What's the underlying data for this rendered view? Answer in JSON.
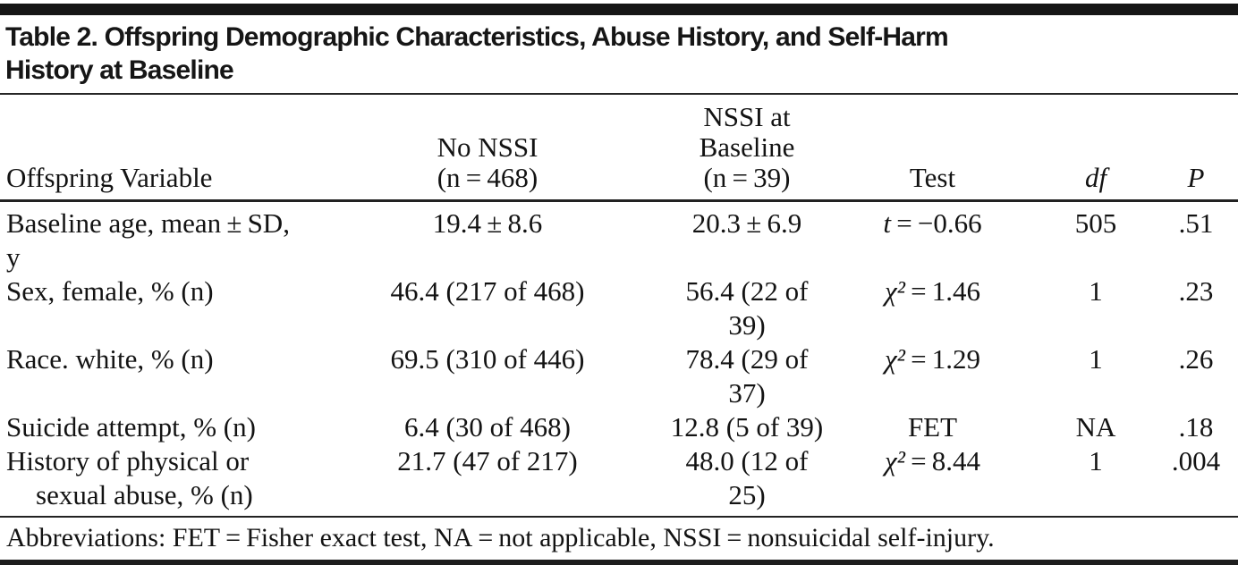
{
  "colors": {
    "rule": "#222222",
    "bar": "#161616",
    "text": "#131313",
    "background": "#ffffff"
  },
  "title": {
    "line1": "Table 2. Offspring Demographic Characteristics, Abuse History, and Self-Harm",
    "line2": "History at Baseline"
  },
  "table": {
    "header": {
      "variable": "Offspring Variable",
      "no_nssi": {
        "line1": "No NSSI",
        "line2": "(n = 468)"
      },
      "nssi_baseline": {
        "line1": "NSSI at",
        "line2": "Baseline",
        "line3": "(n = 39)"
      },
      "test": "Test",
      "df": "df",
      "p": "P"
    },
    "rows": [
      {
        "variable": "Baseline age, mean ± SD, y",
        "no_nssi": "19.4 ± 8.6",
        "nssi_baseline": "20.3 ± 6.9",
        "test_symbol": "t",
        "test_rest": " = −0.66",
        "df": "505",
        "p": ".51"
      },
      {
        "variable": "Sex, female, % (n)",
        "no_nssi": "46.4 (217 of 468)",
        "nssi_baseline": "56.4 (22 of 39)",
        "test_symbol": "χ²",
        "test_rest": " = 1.46",
        "df": "1",
        "p": ".23"
      },
      {
        "variable": "Race. white, % (n)",
        "no_nssi": "69.5 (310 of 446)",
        "nssi_baseline": "78.4 (29 of 37)",
        "test_symbol": "χ²",
        "test_rest": " = 1.29",
        "df": "1",
        "p": ".26"
      },
      {
        "variable": "Suicide attempt, % (n)",
        "no_nssi": "6.4 (30 of 468)",
        "nssi_baseline": "12.8 (5 of 39)",
        "test_symbol": "",
        "test_rest": "FET",
        "df": "NA",
        "p": ".18"
      },
      {
        "variable_line1": "History of physical or",
        "variable_line2": "sexual abuse, % (n)",
        "no_nssi": "21.7 (47 of 217)",
        "nssi_baseline": "48.0 (12 of 25)",
        "test_symbol": "χ²",
        "test_rest": " = 8.44",
        "df": "1",
        "p": ".004"
      }
    ],
    "footnote": "Abbreviations: FET = Fisher exact test, NA = not applicable, NSSI = nonsuicidal self-injury."
  }
}
